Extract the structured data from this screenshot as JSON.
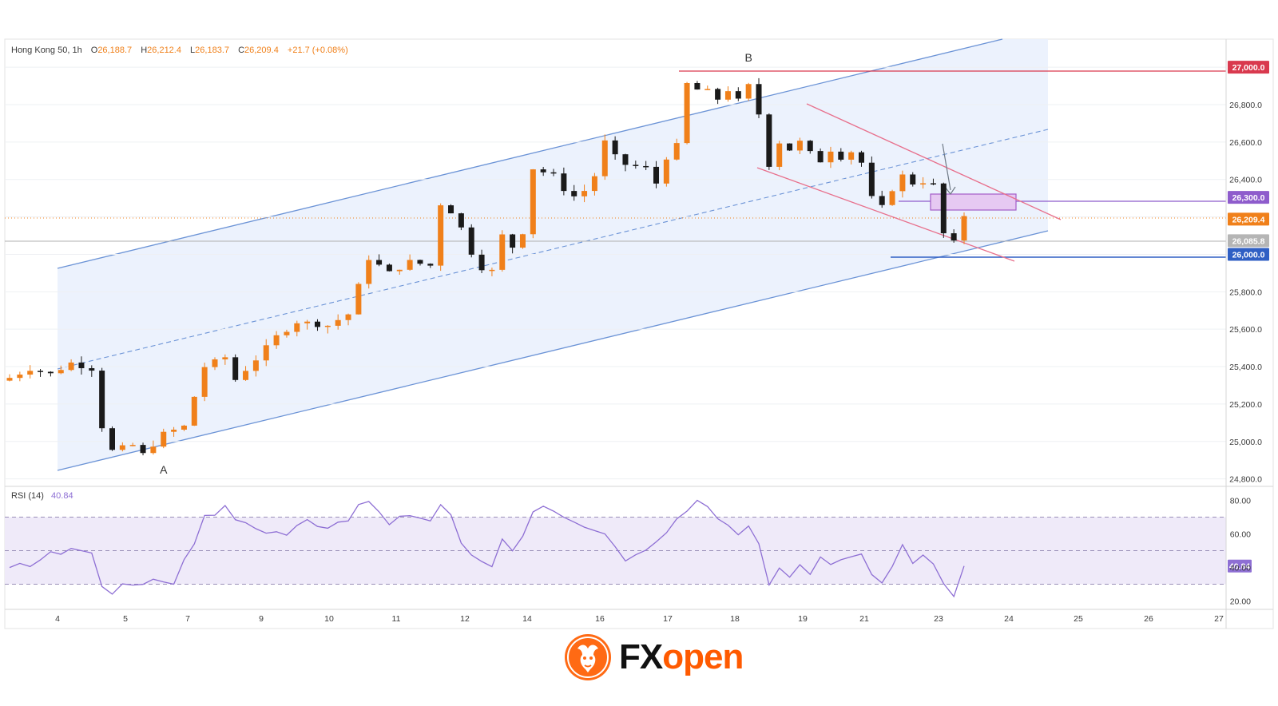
{
  "header": {
    "symbol": "Hong Kong 50, 1h",
    "o_label": "O",
    "o_value": "26,188.7",
    "h_label": "H",
    "h_value": "26,212.4",
    "l_label": "L",
    "l_value": "26,183.7",
    "c_label": "C",
    "c_value": "26,209.4",
    "change": "+21.7 (+0.08%)"
  },
  "rsi_header": {
    "label": "RSI (14)",
    "value": "40.84"
  },
  "brand": {
    "fx": "FX",
    "open": "open",
    "icon": "bull-head-icon"
  },
  "colors": {
    "up": "#f0801a",
    "down": "#1a1a1a",
    "channel": "#6b93d6",
    "channel_fill": "#eaf1fd",
    "descending": "#e8708c",
    "resistance_27000": "#d9394e",
    "level_26300": "#8e5ccc",
    "level_26000": "#2f5fc4",
    "rsi_line": "#8e6fd4",
    "rsi_band": "#efeaf9",
    "brand_orange": "#ff5a00"
  },
  "chart_data": {
    "type": "candlestick",
    "instrument": "Hong Kong 50",
    "timeframe": "1h",
    "y_ticks": [
      "24,800.0",
      "25,000.0",
      "25,200.0",
      "25,400.0",
      "25,600.0",
      "25,800.0",
      "26,000.0",
      "26,200.0",
      "26,400.0",
      "26,600.0",
      "26,800.0",
      "27,000.0"
    ],
    "ylim": [
      24760,
      27150
    ],
    "x_ticks": [
      "4",
      "5",
      "7",
      "9",
      "10",
      "11",
      "12",
      "14",
      "16",
      "17",
      "18",
      "19",
      "21",
      "23",
      "24",
      "25",
      "26",
      "27"
    ],
    "price_path": [
      [
        0,
        25340
      ],
      [
        2,
        25390
      ],
      [
        4,
        25360
      ],
      [
        6,
        25420
      ],
      [
        8,
        25390
      ],
      [
        9,
        25080
      ],
      [
        10,
        24950
      ],
      [
        12,
        24980
      ],
      [
        13,
        24930
      ],
      [
        15,
        25040
      ],
      [
        17,
        25080
      ],
      [
        19,
        25400
      ],
      [
        21,
        25450
      ],
      [
        22,
        25330
      ],
      [
        24,
        25440
      ],
      [
        26,
        25560
      ],
      [
        28,
        25640
      ],
      [
        31,
        25620
      ],
      [
        33,
        25680
      ],
      [
        35,
        25980
      ],
      [
        37,
        25900
      ],
      [
        39,
        25960
      ],
      [
        41,
        25940
      ],
      [
        42,
        26270
      ],
      [
        43,
        26230
      ],
      [
        44,
        26140
      ],
      [
        45,
        26010
      ],
      [
        46,
        25930
      ],
      [
        47,
        25910
      ],
      [
        48,
        26100
      ],
      [
        49,
        26040
      ],
      [
        50,
        26120
      ],
      [
        51,
        26460
      ],
      [
        52,
        26440
      ],
      [
        53,
        26420
      ],
      [
        54,
        26350
      ],
      [
        55,
        26310
      ],
      [
        56,
        26340
      ],
      [
        57,
        26420
      ],
      [
        58,
        26600
      ],
      [
        59,
        26520
      ],
      [
        60,
        26480
      ],
      [
        62,
        26460
      ],
      [
        63,
        26380
      ],
      [
        64,
        26520
      ],
      [
        65,
        26580
      ],
      [
        66,
        26910
      ],
      [
        67,
        26880
      ],
      [
        68,
        26870
      ],
      [
        69,
        26830
      ],
      [
        70,
        26880
      ],
      [
        71,
        26820
      ],
      [
        72,
        26900
      ],
      [
        73,
        26750
      ],
      [
        74,
        26480
      ],
      [
        75,
        26600
      ],
      [
        76,
        26560
      ],
      [
        77,
        26600
      ],
      [
        78,
        26540
      ],
      [
        79,
        26500
      ],
      [
        80,
        26560
      ],
      [
        81,
        26520
      ],
      [
        82,
        26550
      ],
      [
        83,
        26490
      ],
      [
        84,
        26300
      ],
      [
        85,
        26250
      ],
      [
        86,
        26350
      ],
      [
        87,
        26420
      ],
      [
        88,
        26380
      ],
      [
        89,
        26390
      ],
      [
        90,
        26370
      ],
      [
        91,
        26110
      ],
      [
        92,
        26060
      ],
      [
        93,
        26209.4
      ]
    ],
    "price_labels": [
      {
        "value": 27000,
        "label": "27,000.0"
      },
      {
        "value": 26300,
        "label": "26,300.0"
      },
      {
        "value": 26209.4,
        "label": "26,209.4"
      },
      {
        "value": 26085.8,
        "label": "26,085.8"
      },
      {
        "value": 26000,
        "label": "26,000.0"
      }
    ],
    "annotations": [
      {
        "text": "A",
        "x": 15,
        "y": 24930
      },
      {
        "text": "B",
        "x": 72,
        "y": 26980
      }
    ],
    "rsi": {
      "period": 14,
      "current": 40.84,
      "y_ticks": [
        "20.00",
        "40.00",
        "60.00",
        "80.00"
      ],
      "ylim": [
        15,
        85
      ],
      "overbought": 70,
      "middle": 50,
      "oversold": 30,
      "path": [
        [
          0,
          38
        ],
        [
          3,
          45
        ],
        [
          6,
          52
        ],
        [
          8,
          48
        ],
        [
          9,
          30
        ],
        [
          10,
          26
        ],
        [
          12,
          30
        ],
        [
          14,
          33
        ],
        [
          16,
          32
        ],
        [
          18,
          55
        ],
        [
          19,
          72
        ],
        [
          21,
          75
        ],
        [
          23,
          65
        ],
        [
          25,
          62
        ],
        [
          27,
          60
        ],
        [
          29,
          68
        ],
        [
          31,
          65
        ],
        [
          33,
          70
        ],
        [
          35,
          80
        ],
        [
          37,
          65
        ],
        [
          39,
          72
        ],
        [
          41,
          68
        ],
        [
          42,
          78
        ],
        [
          43,
          70
        ],
        [
          44,
          55
        ],
        [
          45,
          48
        ],
        [
          46,
          45
        ],
        [
          47,
          42
        ],
        [
          48,
          56
        ],
        [
          49,
          52
        ],
        [
          50,
          60
        ],
        [
          51,
          72
        ],
        [
          52,
          75
        ],
        [
          54,
          68
        ],
        [
          56,
          63
        ],
        [
          58,
          60
        ],
        [
          59,
          50
        ],
        [
          60,
          45
        ],
        [
          62,
          52
        ],
        [
          64,
          60
        ],
        [
          65,
          68
        ],
        [
          66,
          75
        ],
        [
          67,
          78
        ],
        [
          68,
          74
        ],
        [
          69,
          70
        ],
        [
          70,
          65
        ],
        [
          71,
          60
        ],
        [
          72,
          67
        ],
        [
          73,
          52
        ],
        [
          74,
          30
        ],
        [
          75,
          38
        ],
        [
          76,
          34
        ],
        [
          77,
          42
        ],
        [
          78,
          38
        ],
        [
          79,
          45
        ],
        [
          80,
          40
        ],
        [
          81,
          46
        ],
        [
          82,
          44
        ],
        [
          83,
          50
        ],
        [
          84,
          35
        ],
        [
          85,
          30
        ],
        [
          86,
          40
        ],
        [
          87,
          52
        ],
        [
          88,
          44
        ],
        [
          89,
          46
        ],
        [
          90,
          44
        ],
        [
          91,
          28
        ],
        [
          92,
          25
        ],
        [
          93,
          40.84
        ]
      ]
    }
  }
}
